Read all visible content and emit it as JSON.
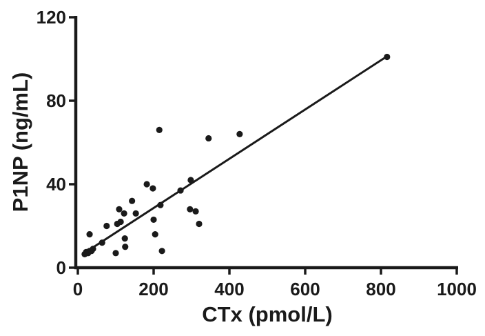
{
  "figure": {
    "background": "#ffffff",
    "ink_color": "#1a1a1a"
  },
  "chart_data": {
    "type": "scatter",
    "title": "",
    "xlabel": "CTx (pmol/L)",
    "ylabel": "P1NP (ng/mL)",
    "xlim": [
      0,
      1000
    ],
    "ylim": [
      0,
      120
    ],
    "xticks": [
      0,
      200,
      400,
      600,
      800,
      1000
    ],
    "yticks": [
      0,
      40,
      80,
      120
    ],
    "grid": false,
    "legend": "none",
    "marker": "filled-circle",
    "marker_color": "#1a1a1a",
    "points": [
      [
        18,
        6.5
      ],
      [
        22,
        7.5
      ],
      [
        27,
        7
      ],
      [
        31,
        8
      ],
      [
        36,
        8
      ],
      [
        40,
        9
      ],
      [
        31,
        16
      ],
      [
        64,
        12
      ],
      [
        76,
        20
      ],
      [
        100,
        7
      ],
      [
        104,
        21
      ],
      [
        113,
        22
      ],
      [
        109,
        28
      ],
      [
        122,
        26
      ],
      [
        124,
        14
      ],
      [
        125,
        10
      ],
      [
        143,
        32
      ],
      [
        153,
        26
      ],
      [
        182,
        40
      ],
      [
        198,
        38
      ],
      [
        200,
        23
      ],
      [
        204,
        16
      ],
      [
        215,
        66
      ],
      [
        218,
        30
      ],
      [
        222,
        8
      ],
      [
        271,
        37
      ],
      [
        298,
        42
      ],
      [
        296,
        28
      ],
      [
        311,
        27
      ],
      [
        320,
        21
      ],
      [
        345,
        62
      ],
      [
        427,
        64
      ],
      [
        816,
        101
      ]
    ],
    "trendline": {
      "type": "linear",
      "slope": 0.118,
      "intercept": 5.0,
      "x_start": 20,
      "x_end": 816
    }
  }
}
